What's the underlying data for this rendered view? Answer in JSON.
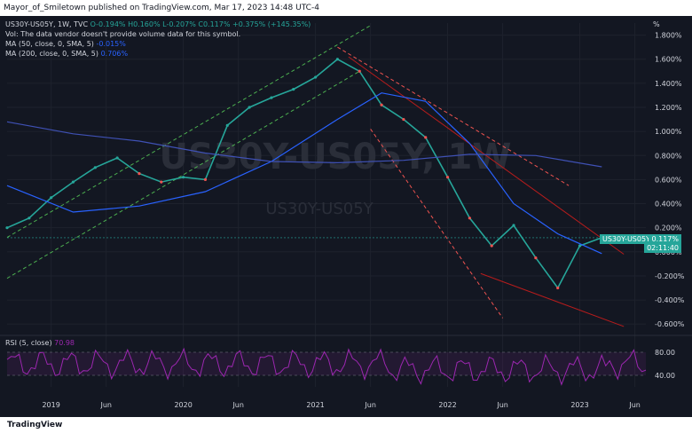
{
  "header": {
    "publish_line": "Mayor_of_Smiletown published on TradingView.com, Mar 17, 2023 14:48 UTC-4"
  },
  "legend": {
    "symbol_line": "US30Y-US05Y, 1W, TVC",
    "ohlc": "O-0.194% H0.160% L-0.207% C0.117% +0.375% (+145.35%)",
    "volume_note": "Vol: The data vendor doesn't provide volume data for this symbol.",
    "ma50_label": "MA (50, close, 0, SMA, 5)",
    "ma50_value": "-0.015%",
    "ma200_label": "MA (200, close, 0, SMA, 5)",
    "ma200_value": "0.706%"
  },
  "watermark": {
    "big": "US30Y-US05Y, 1W",
    "small": "US30Y-US05Y"
  },
  "price_tags": {
    "symbol": "US30Y-US05Y",
    "price": "0.117%",
    "countdown": "02:11:40",
    "axis_unit": "%"
  },
  "rsi": {
    "label": "RSI (5, close)",
    "value": "70.98",
    "levels": [
      "80.00",
      "40.00"
    ]
  },
  "footer": {
    "logo": "TradingView"
  },
  "colors": {
    "background": "#131722",
    "up": "#26a69a",
    "down": "#ef5350",
    "ma50": "#2962ff",
    "ma200": "#3f51b5",
    "rsi": "#9c27b0"
  },
  "chart_data": {
    "type": "line",
    "title": "US30Y-US05Y, 1W, TVC",
    "x_ticks": [
      "2019",
      "Jun",
      "2020",
      "Jun",
      "2021",
      "Jun",
      "2022",
      "Jun",
      "2023",
      "Jun"
    ],
    "y_ticks": [
      "1.800%",
      "1.600%",
      "1.400%",
      "1.200%",
      "1.000%",
      "0.800%",
      "0.600%",
      "0.400%",
      "0.200%",
      "0.000%",
      "-0.200%",
      "-0.400%",
      "-0.600%"
    ],
    "ylim": [
      -0.65,
      1.9
    ],
    "x_range": [
      "2018-09",
      "2023-07"
    ],
    "series": [
      {
        "name": "US30Y-US05Y",
        "x": [
          "2018-09",
          "2018-11",
          "2019-01",
          "2019-03",
          "2019-05",
          "2019-07",
          "2019-09",
          "2019-11",
          "2020-01",
          "2020-03",
          "2020-05",
          "2020-07",
          "2020-09",
          "2020-11",
          "2021-01",
          "2021-03",
          "2021-05",
          "2021-07",
          "2021-09",
          "2021-11",
          "2022-01",
          "2022-03",
          "2022-05",
          "2022-07",
          "2022-09",
          "2022-11",
          "2023-01",
          "2023-03"
        ],
        "values": [
          0.2,
          0.28,
          0.45,
          0.58,
          0.7,
          0.78,
          0.65,
          0.58,
          0.62,
          0.6,
          1.05,
          1.2,
          1.28,
          1.35,
          1.45,
          1.6,
          1.5,
          1.22,
          1.1,
          0.95,
          0.62,
          0.28,
          0.05,
          0.22,
          -0.05,
          -0.3,
          0.05,
          0.117
        ]
      },
      {
        "name": "MA 50",
        "x": [
          "2018-09",
          "2019-03",
          "2019-09",
          "2020-03",
          "2020-09",
          "2021-03",
          "2021-07",
          "2021-11",
          "2022-03",
          "2022-07",
          "2022-11",
          "2023-03"
        ],
        "values": [
          0.55,
          0.33,
          0.38,
          0.5,
          0.75,
          1.1,
          1.32,
          1.25,
          0.9,
          0.4,
          0.15,
          -0.015
        ]
      },
      {
        "name": "MA 200",
        "x": [
          "2018-09",
          "2019-03",
          "2019-09",
          "2020-03",
          "2020-09",
          "2021-03",
          "2021-09",
          "2022-03",
          "2022-09",
          "2023-03"
        ],
        "values": [
          1.08,
          0.98,
          0.92,
          0.82,
          0.75,
          0.74,
          0.76,
          0.81,
          0.8,
          0.706
        ]
      }
    ],
    "rsi": {
      "ylim": [
        20,
        100
      ],
      "levels": [
        80,
        40
      ]
    },
    "grid": true,
    "legend": "top-left"
  }
}
